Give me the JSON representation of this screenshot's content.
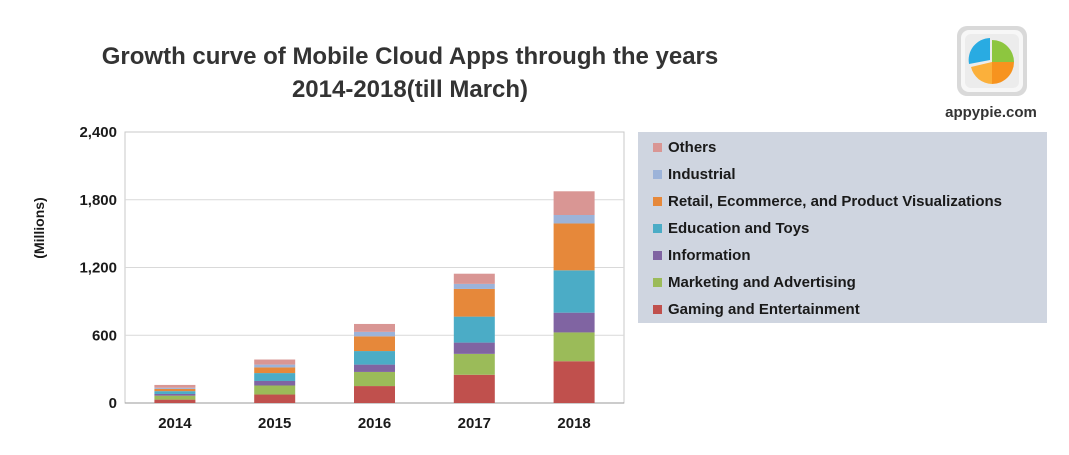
{
  "title_line1": "Growth curve of Mobile Cloud Apps through the years",
  "title_line2": "2014-2018(till March)",
  "brand": {
    "text": "appypie.com",
    "logo_icon": "pie-chart-logo-icon"
  },
  "chart_data": {
    "type": "bar",
    "stacked": true,
    "title": "Growth curve of Mobile Cloud Apps through the years 2014-2018(till March)",
    "xlabel": "",
    "ylabel": "(Millions)",
    "ylim": [
      0,
      2400
    ],
    "yticks": [
      "2,400",
      "1,800",
      "1,200",
      "600",
      "0"
    ],
    "ytick_values": [
      2400,
      1800,
      1200,
      600,
      0
    ],
    "categories": [
      "2014",
      "2015",
      "2016",
      "2017",
      "2018"
    ],
    "grid": true,
    "legend_position": "right",
    "series": [
      {
        "name": "Gaming and Entertainment",
        "color": "#c0504d",
        "values": [
          30,
          75,
          150,
          250,
          370
        ]
      },
      {
        "name": "Marketing and Advertising",
        "color": "#9bbb59",
        "values": [
          35,
          80,
          125,
          185,
          255
        ]
      },
      {
        "name": "Information",
        "color": "#8064a2",
        "values": [
          15,
          40,
          65,
          100,
          175
        ]
      },
      {
        "name": "Education and Toys",
        "color": "#4bacc6",
        "values": [
          25,
          70,
          120,
          230,
          375
        ]
      },
      {
        "name": "Retail, Ecommerce, and Product Visualizations",
        "color": "#e6883a",
        "values": [
          20,
          50,
          130,
          245,
          415
        ]
      },
      {
        "name": "Industrial",
        "color": "#9cb3d9",
        "values": [
          10,
          25,
          40,
          45,
          75
        ]
      },
      {
        "name": "Others",
        "color": "#d99694",
        "values": [
          25,
          45,
          70,
          90,
          210
        ]
      }
    ]
  }
}
